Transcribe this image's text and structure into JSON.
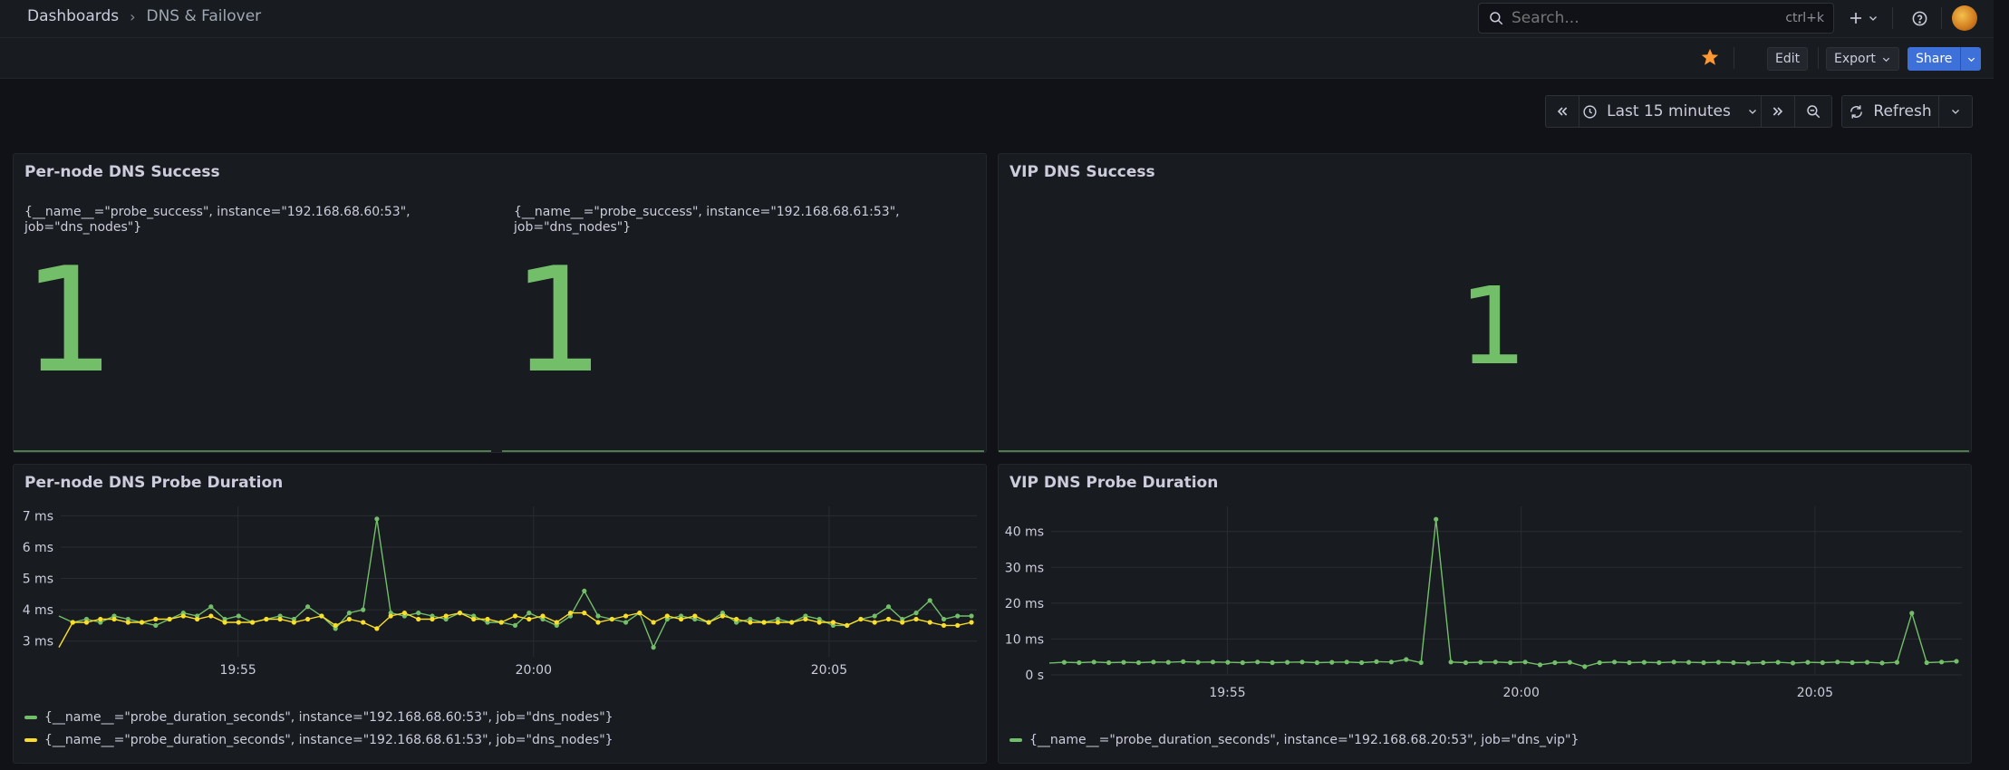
{
  "breadcrumb": {
    "root": "Dashboards",
    "separator": "›",
    "current": "DNS & Failover"
  },
  "search": {
    "placeholder": "Search...",
    "shortcut": "ctrl+k"
  },
  "toolbar": {
    "edit_label": "Edit",
    "export_label": "Export",
    "share_label": "Share"
  },
  "time": {
    "range_label": "Last 15 minutes",
    "refresh_label": "Refresh"
  },
  "icons": {
    "search": "search-icon",
    "add": "plus-icon",
    "help": "help-icon",
    "star": "star-icon",
    "clock": "clock-icon",
    "refresh": "refresh-icon",
    "zoom_out": "zoom-out-icon"
  },
  "colors": {
    "green": "#73bf69",
    "yellow": "#fade2a",
    "accent_blue": "#3d71d9",
    "star_orange": "#ff9830"
  },
  "panels": {
    "per_node_success": {
      "title": "Per-node DNS Success",
      "stats": [
        {
          "label": "{__name__=\"probe_success\", instance=\"192.168.68.60:53\", job=\"dns_nodes\"}",
          "value": "1"
        },
        {
          "label": "{__name__=\"probe_success\", instance=\"192.168.68.61:53\", job=\"dns_nodes\"}",
          "value": "1"
        }
      ]
    },
    "vip_success": {
      "title": "VIP DNS Success",
      "value": "1"
    },
    "per_node_duration": {
      "title": "Per-node DNS Probe Duration",
      "legend": [
        "{__name__=\"probe_duration_seconds\", instance=\"192.168.68.60:53\", job=\"dns_nodes\"}",
        "{__name__=\"probe_duration_seconds\", instance=\"192.168.68.61:53\", job=\"dns_nodes\"}"
      ]
    },
    "vip_duration": {
      "title": "VIP DNS Probe Duration",
      "legend": [
        "{__name__=\"probe_duration_seconds\", instance=\"192.168.68.20:53\", job=\"dns_vip\"}"
      ]
    }
  },
  "chart_data": [
    {
      "type": "line",
      "title": "Per-node DNS Probe Duration",
      "xlabel": "",
      "ylabel": "",
      "x_ticks": [
        "19:55",
        "20:00",
        "20:05"
      ],
      "y_ticks": [
        "3 ms",
        "4 ms",
        "5 ms",
        "6 ms",
        "7 ms"
      ],
      "ylim": [
        2.5,
        7.3
      ],
      "x_range": [
        "19:52",
        "20:07:30"
      ],
      "grid": true,
      "legend_position": "bottom-left",
      "series": [
        {
          "name": "{__name__=\"probe_duration_seconds\", instance=\"192.168.68.60:53\", job=\"dns_nodes\"}",
          "color": "#73bf69",
          "values": [
            3.8,
            3.6,
            3.7,
            3.6,
            3.8,
            3.7,
            3.6,
            3.5,
            3.7,
            3.9,
            3.8,
            4.1,
            3.7,
            3.8,
            3.6,
            3.7,
            3.8,
            3.7,
            4.1,
            3.8,
            3.4,
            3.9,
            4.0,
            6.9,
            3.9,
            3.8,
            3.9,
            3.8,
            3.7,
            3.9,
            3.8,
            3.6,
            3.6,
            3.5,
            3.9,
            3.7,
            3.5,
            3.8,
            4.6,
            3.8,
            3.7,
            3.6,
            3.9,
            2.8,
            3.7,
            3.8,
            3.7,
            3.6,
            3.9,
            3.6,
            3.7,
            3.6,
            3.7,
            3.6,
            3.8,
            3.7,
            3.5,
            3.5,
            3.7,
            3.8,
            4.1,
            3.7,
            3.9,
            4.3,
            3.7,
            3.8,
            3.8
          ]
        },
        {
          "name": "{__name__=\"probe_duration_seconds\", instance=\"192.168.68.61:53\", job=\"dns_nodes\"}",
          "color": "#fade2a",
          "values": [
            2.8,
            3.6,
            3.6,
            3.7,
            3.7,
            3.6,
            3.6,
            3.7,
            3.7,
            3.8,
            3.7,
            3.8,
            3.6,
            3.6,
            3.6,
            3.7,
            3.7,
            3.6,
            3.7,
            3.8,
            3.5,
            3.7,
            3.6,
            3.4,
            3.8,
            3.9,
            3.7,
            3.7,
            3.8,
            3.9,
            3.7,
            3.7,
            3.6,
            3.8,
            3.7,
            3.8,
            3.6,
            3.9,
            3.9,
            3.6,
            3.7,
            3.8,
            3.9,
            3.6,
            3.8,
            3.7,
            3.8,
            3.6,
            3.8,
            3.7,
            3.6,
            3.6,
            3.6,
            3.6,
            3.7,
            3.6,
            3.6,
            3.5,
            3.7,
            3.6,
            3.7,
            3.6,
            3.7,
            3.6,
            3.5,
            3.5,
            3.6
          ]
        }
      ]
    },
    {
      "type": "line",
      "title": "VIP DNS Probe Duration",
      "xlabel": "",
      "ylabel": "",
      "x_ticks": [
        "19:55",
        "20:00",
        "20:05"
      ],
      "y_ticks": [
        "0 s",
        "10 ms",
        "20 ms",
        "30 ms",
        "40 ms"
      ],
      "ylim": [
        0,
        47
      ],
      "x_range": [
        "19:52",
        "20:07:30"
      ],
      "grid": true,
      "legend_position": "bottom-left",
      "series": [
        {
          "name": "{__name__=\"probe_duration_seconds\", instance=\"192.168.68.20:53\", job=\"dns_vip\"}",
          "color": "#73bf69",
          "values": [
            3.3,
            3.5,
            3.4,
            3.6,
            3.4,
            3.5,
            3.4,
            3.6,
            3.5,
            3.7,
            3.5,
            3.6,
            3.5,
            3.4,
            3.6,
            3.4,
            3.5,
            3.6,
            3.4,
            3.5,
            3.6,
            3.4,
            3.7,
            3.6,
            4.3,
            3.4,
            43.4,
            3.6,
            3.4,
            3.5,
            3.6,
            3.4,
            3.6,
            2.8,
            3.4,
            3.5,
            2.3,
            3.4,
            3.6,
            3.4,
            3.5,
            3.4,
            3.6,
            3.5,
            3.4,
            3.5,
            3.4,
            3.3,
            3.4,
            3.5,
            3.3,
            3.5,
            3.4,
            3.6,
            3.4,
            3.5,
            3.3,
            3.5,
            17.2,
            3.4,
            3.6,
            3.8
          ]
        }
      ]
    }
  ]
}
